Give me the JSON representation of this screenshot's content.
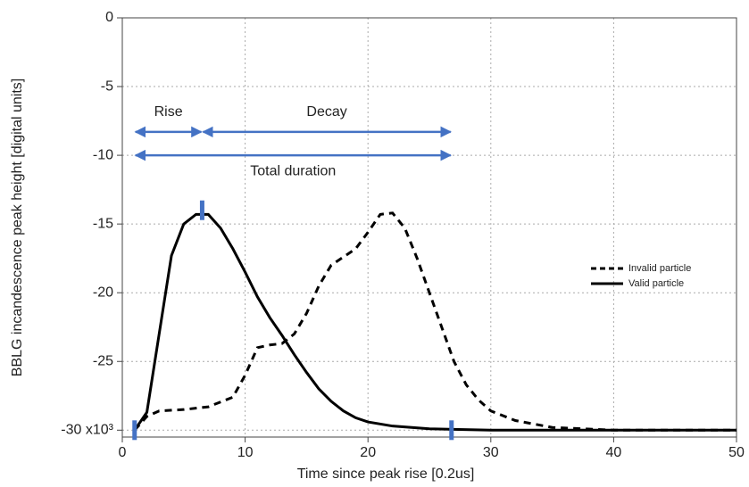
{
  "chart_data": {
    "type": "line",
    "xlabel": "Time since peak rise [0.2us]",
    "ylabel": "BBLG incandescence peak height [digital units]",
    "xlim": [
      0,
      50
    ],
    "ylim": [
      -30.5,
      0
    ],
    "xticks": [
      0,
      10,
      20,
      30,
      40,
      50
    ],
    "yticks": [
      {
        "value": -30,
        "label": "-30 x10³"
      },
      -25,
      -20,
      -15,
      -10,
      -5,
      0
    ],
    "grid": true,
    "legend": "right",
    "series": [
      {
        "name": "Invalid particle",
        "color": "#000000",
        "dashed": true,
        "x": [
          1,
          2,
          3,
          5,
          7,
          9,
          10,
          11,
          12,
          13,
          14,
          15,
          16,
          17,
          18,
          19,
          20,
          21,
          22,
          23,
          24,
          25,
          26,
          27,
          28,
          29,
          30,
          32,
          35,
          40,
          50
        ],
        "values": [
          -30,
          -29,
          -28.6,
          -28.5,
          -28.3,
          -27.6,
          -26,
          -24,
          -23.8,
          -23.7,
          -23,
          -21.5,
          -19.5,
          -18,
          -17.4,
          -16.8,
          -15.6,
          -14.3,
          -14.2,
          -15.3,
          -17.5,
          -20,
          -22.5,
          -25,
          -26.7,
          -27.8,
          -28.6,
          -29.3,
          -29.8,
          -30,
          -30
        ]
      },
      {
        "name": "Valid particle",
        "color": "#000000",
        "dashed": false,
        "x": [
          1,
          2,
          3,
          4,
          5,
          6,
          7,
          8,
          9,
          10,
          11,
          12,
          13,
          14,
          15,
          16,
          17,
          18,
          19,
          20,
          22,
          25,
          30,
          40,
          50
        ],
        "values": [
          -30,
          -28.7,
          -23,
          -17.3,
          -15,
          -14.3,
          -14.3,
          -15.3,
          -16.8,
          -18.5,
          -20.3,
          -21.8,
          -23.1,
          -24.5,
          -25.8,
          -27,
          -27.9,
          -28.6,
          -29.1,
          -29.4,
          -29.7,
          -29.9,
          -30,
          -30,
          -30
        ]
      }
    ],
    "annotation_color": "#4472c4",
    "markers": {
      "x": [
        1,
        6.5,
        26.8
      ],
      "y": [
        -30,
        -14,
        -30
      ]
    },
    "spans": [
      {
        "label": "Rise",
        "x": [
          1,
          6.5
        ],
        "y": -8.3
      },
      {
        "label": "Decay",
        "x": [
          6.5,
          26.8
        ],
        "y": -8.3
      },
      {
        "label": "Total duration",
        "x": [
          1,
          26.8
        ],
        "y": -10
      }
    ]
  }
}
